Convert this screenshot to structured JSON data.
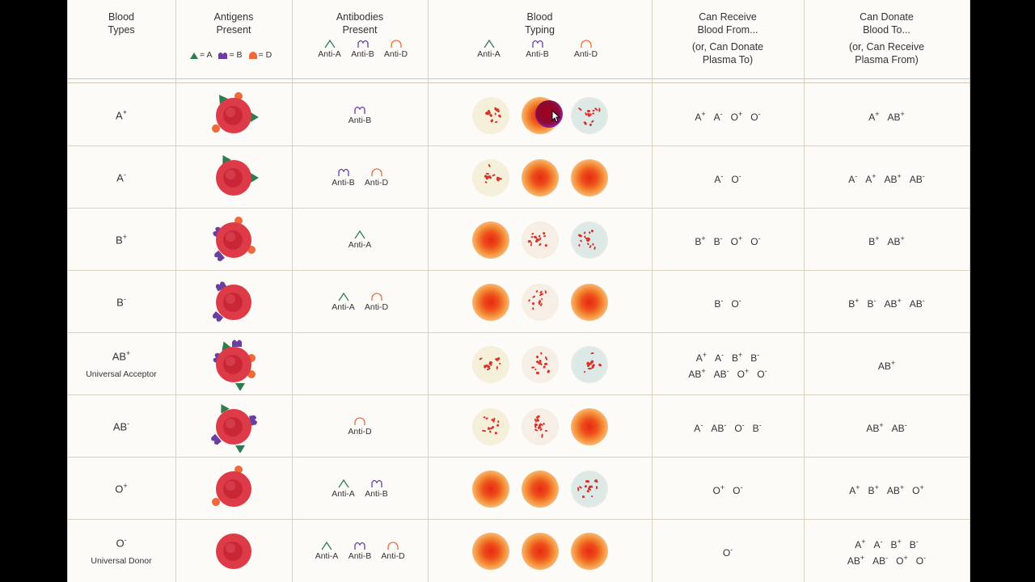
{
  "colors": {
    "antigen_a": "#2e7d4f",
    "antigen_b": "#6a3fa0",
    "antigen_d": "#ef6a3a",
    "rbc": "#de3b48",
    "rbc_center": "#c52533",
    "grid": "#d8d0c2"
  },
  "header": {
    "blood_types": [
      "Blood",
      "Types"
    ],
    "antigens": [
      "Antigens",
      "Present"
    ],
    "antibodies": [
      "Antibodies",
      "Present"
    ],
    "typing": [
      "Blood",
      "Typing"
    ],
    "receive": [
      "Can Receive",
      "Blood From...",
      "(or, Can Donate",
      "Plasma To)"
    ],
    "donate": [
      "Can Donate",
      "Blood To...",
      "(or, Can Receive",
      "Plasma From)"
    ],
    "legend": [
      "= A",
      "= B",
      "= D"
    ],
    "anti_labels": [
      "Anti-A",
      "Anti-B",
      "Anti-D"
    ]
  },
  "rows": [
    {
      "type": "A",
      "sign": "+",
      "tag": "",
      "antigens": [
        "A",
        "D"
      ],
      "antibodies": [
        "Anti-B"
      ],
      "typing": [
        "clumped",
        "smooth",
        "clumped"
      ],
      "receive": [
        [
          "A+",
          "A-",
          "O+",
          "O-"
        ]
      ],
      "donate": [
        [
          "A+",
          "AB+"
        ]
      ]
    },
    {
      "type": "A",
      "sign": "-",
      "tag": "",
      "antigens": [
        "A"
      ],
      "antibodies": [
        "Anti-B",
        "Anti-D"
      ],
      "typing": [
        "clumped",
        "smooth",
        "smooth"
      ],
      "receive": [
        [
          "A-",
          "O-"
        ]
      ],
      "donate": [
        [
          "A-",
          "A+",
          "AB+",
          "AB-"
        ]
      ]
    },
    {
      "type": "B",
      "sign": "+",
      "tag": "",
      "antigens": [
        "B",
        "D"
      ],
      "antibodies": [
        "Anti-A"
      ],
      "typing": [
        "smooth",
        "clumped",
        "clumped"
      ],
      "receive": [
        [
          "B+",
          "B-",
          "O+",
          "O-"
        ]
      ],
      "donate": [
        [
          "B+",
          "AB+"
        ]
      ]
    },
    {
      "type": "B",
      "sign": "-",
      "tag": "",
      "antigens": [
        "B"
      ],
      "antibodies": [
        "Anti-A",
        "Anti-D"
      ],
      "typing": [
        "smooth",
        "clumped",
        "smooth"
      ],
      "receive": [
        [
          "B-",
          "O-"
        ]
      ],
      "donate": [
        [
          "B+",
          "B-",
          "AB+",
          "AB-"
        ]
      ]
    },
    {
      "type": "AB",
      "sign": "+",
      "tag": "Universal Acceptor",
      "antigens": [
        "A",
        "B",
        "D"
      ],
      "antibodies": [],
      "typing": [
        "clumped",
        "clumped",
        "clumped"
      ],
      "receive": [
        [
          "A+",
          "A-",
          "B+",
          "B-"
        ],
        [
          "AB+",
          "AB-",
          "O+",
          "O-"
        ]
      ],
      "donate": [
        [
          "AB+"
        ]
      ]
    },
    {
      "type": "AB",
      "sign": "-",
      "tag": "",
      "antigens": [
        "A",
        "B"
      ],
      "antibodies": [
        "Anti-D"
      ],
      "typing": [
        "clumped",
        "clumped",
        "smooth"
      ],
      "receive": [
        [
          "A-",
          "AB-",
          "O-",
          "B-"
        ]
      ],
      "donate": [
        [
          "AB+",
          "AB-"
        ]
      ]
    },
    {
      "type": "O",
      "sign": "+",
      "tag": "",
      "antigens": [
        "D"
      ],
      "antibodies": [
        "Anti-A",
        "Anti-B"
      ],
      "typing": [
        "smooth",
        "smooth",
        "clumped"
      ],
      "receive": [
        [
          "O+",
          "O-"
        ]
      ],
      "donate": [
        [
          "A+",
          "B+",
          "AB+",
          "O+"
        ]
      ]
    },
    {
      "type": "O",
      "sign": "-",
      "tag": "Universal Donor",
      "antigens": [],
      "antibodies": [
        "Anti-A",
        "Anti-B",
        "Anti-D"
      ],
      "typing": [
        "smooth",
        "smooth",
        "smooth"
      ],
      "receive": [
        [
          "O-"
        ]
      ],
      "donate": [
        [
          "A+",
          "A-",
          "B+",
          "B-"
        ],
        [
          "AB+",
          "AB-",
          "O+",
          "O-"
        ]
      ]
    }
  ],
  "cursor_highlight": {
    "row": 0,
    "col": 1
  }
}
